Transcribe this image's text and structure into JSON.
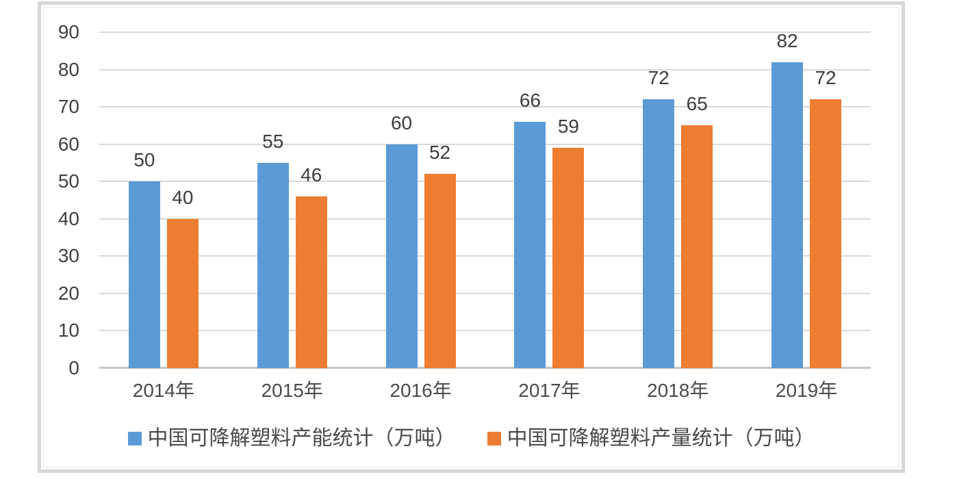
{
  "chart_data": {
    "type": "bar",
    "categories": [
      "2014年",
      "2015年",
      "2016年",
      "2017年",
      "2018年",
      "2019年"
    ],
    "series": [
      {
        "key": "capacity",
        "name": "中国可降解塑料产能统计（万吨）",
        "color": "#5B9BD5",
        "values": [
          50,
          55,
          60,
          66,
          72,
          82
        ]
      },
      {
        "key": "output",
        "name": "中国可降解塑料产量统计（万吨）",
        "color": "#ED7D31",
        "values": [
          40,
          46,
          52,
          59,
          65,
          72
        ]
      }
    ],
    "title": "",
    "xlabel": "",
    "ylabel": "",
    "ylim": [
      0,
      90
    ],
    "ytick_step": 10,
    "ytick_labels": [
      "0",
      "10",
      "20",
      "30",
      "40",
      "50",
      "60",
      "70",
      "80",
      "90"
    ],
    "grid": true,
    "data_labels": true,
    "legend_position": "bottom"
  },
  "colors": {
    "capacity_series": "#5B9BD5",
    "output_series": "#ED7D31",
    "gridline": "#D9D9D9",
    "axis_line": "#C6C6C6",
    "tick_text": "#404040",
    "frame_border": "#D8D8D8",
    "background": "#FFFFFF"
  }
}
